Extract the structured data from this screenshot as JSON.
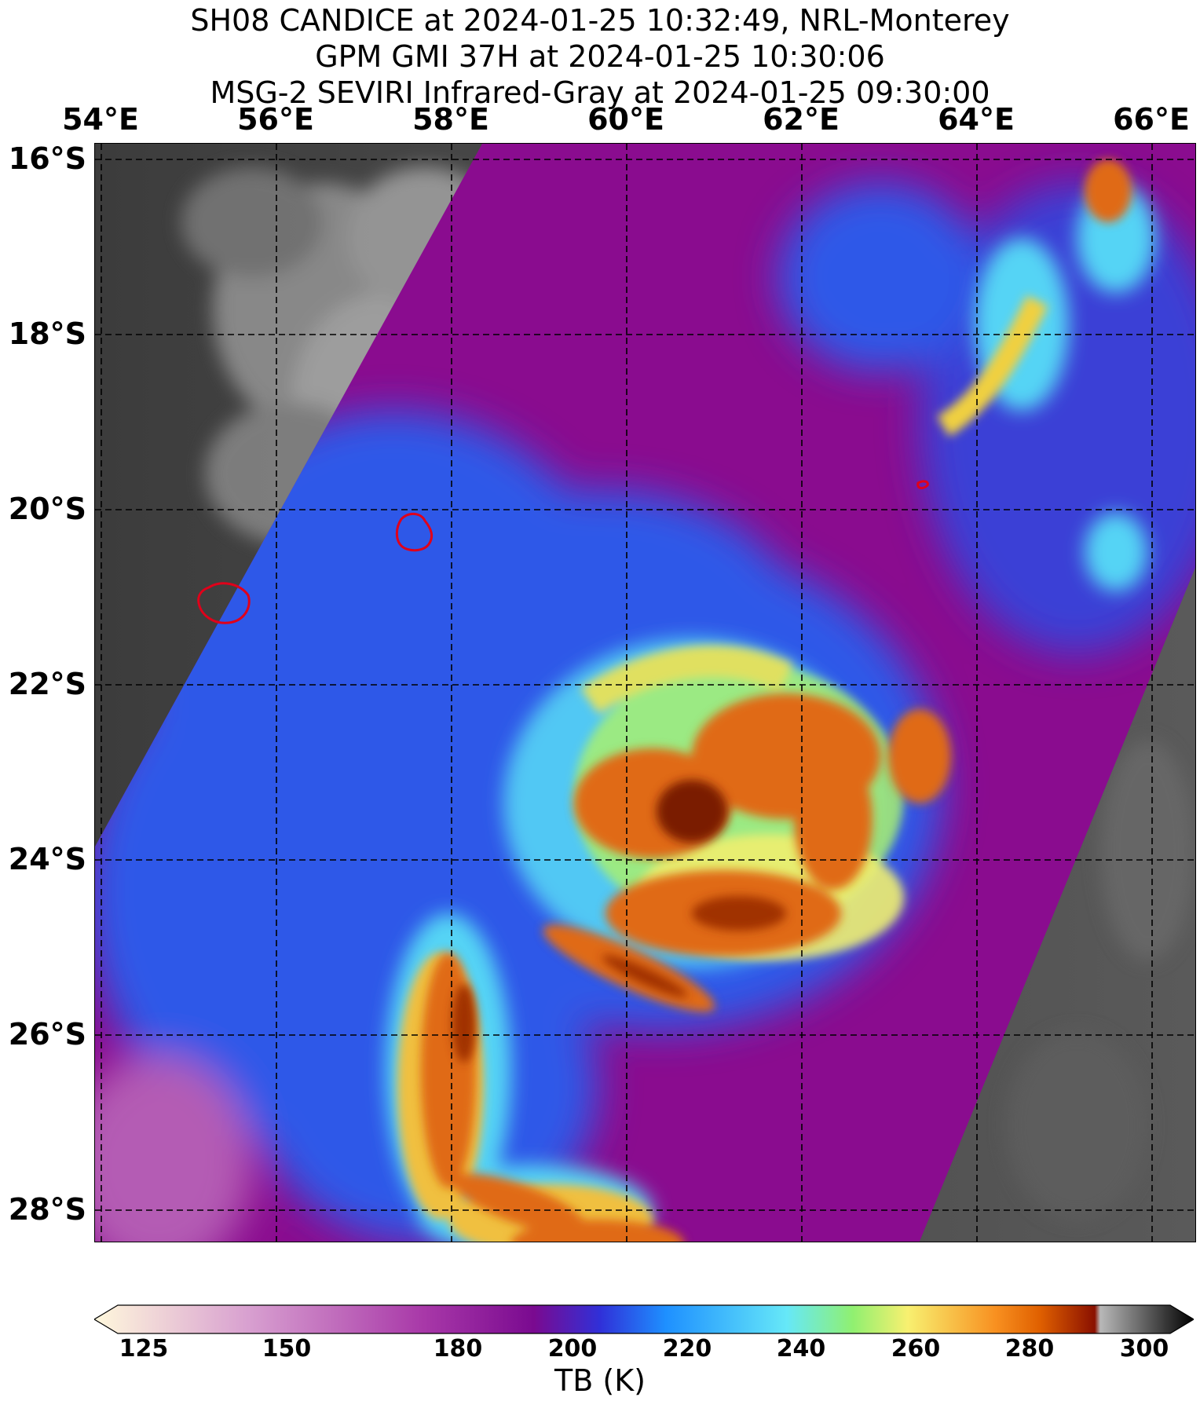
{
  "titles": {
    "line1": "SH08 CANDICE at 2024-01-25 10:32:49, NRL-Monterey",
    "line2": "GPM GMI 37H at 2024-01-25 10:30:06",
    "line3": "MSG-2 SEVIRI Infrared-Gray at 2024-01-25 09:30:00"
  },
  "lon_labels": [
    "54°E",
    "56°E",
    "58°E",
    "60°E",
    "62°E",
    "64°E",
    "66°E"
  ],
  "lat_labels": [
    "16°S",
    "18°S",
    "20°S",
    "22°S",
    "24°S",
    "26°S",
    "28°S"
  ],
  "colorbar": {
    "label": "TB (K)",
    "ticks": [
      "125",
      "150",
      "180",
      "200",
      "220",
      "240",
      "260",
      "280",
      "300"
    ],
    "range": [
      125,
      300
    ],
    "extend": "both"
  },
  "colors": {
    "ir_gray": "#4a4a4a",
    "purple": "#8a0c8f",
    "blue": "#2f58e8",
    "cyan": "#55d4f5",
    "orange": "#e06b12",
    "darkred": "#7a1a00",
    "coast": "#e0001a"
  }
}
